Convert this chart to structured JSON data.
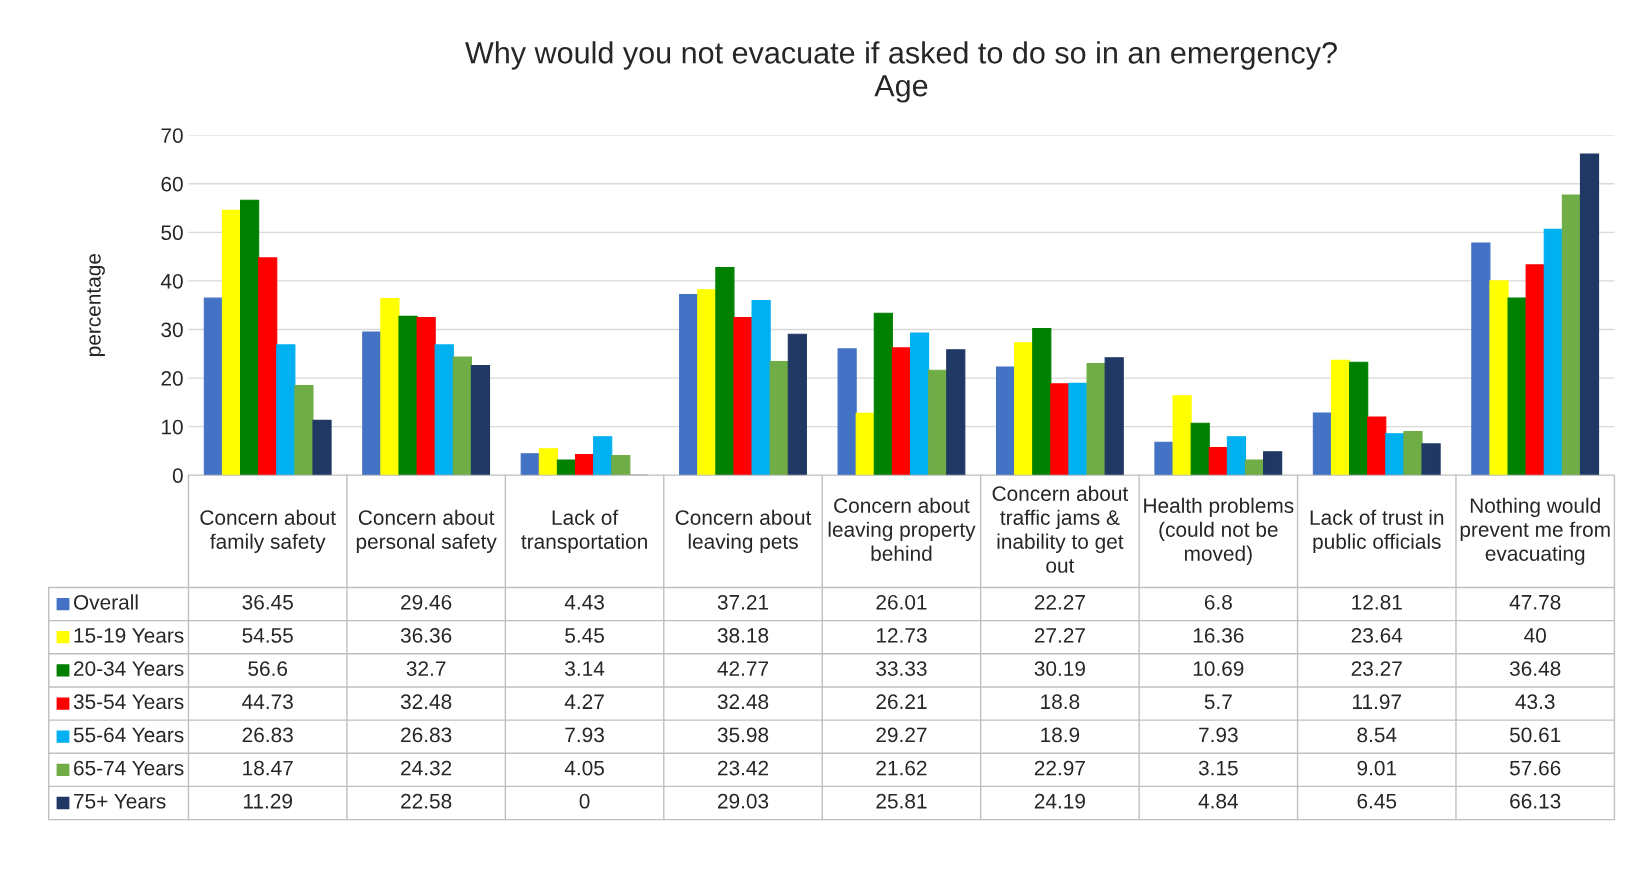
{
  "chart_data": {
    "type": "bar",
    "title": "Why would you not evacuate if asked to do so in an emergency?",
    "subtitle": "Age",
    "ylabel": "percentage",
    "categories": [
      "Concern about family safety",
      "Concern about personal safety",
      "Lack of transportation",
      "Concern about leaving pets",
      "Concern about leaving property behind",
      "Concern about traffic jams & inability to get out",
      "Health problems (could not be moved)",
      "Lack of trust in public officials",
      "Nothing would prevent me from evacuating"
    ],
    "series": [
      {
        "name": "Overall",
        "color": "#4472c4",
        "values": [
          36.45,
          29.46,
          4.43,
          37.21,
          26.01,
          22.27,
          6.8,
          12.81,
          47.78
        ]
      },
      {
        "name": "15-19 Years",
        "color": "#ffff00",
        "values": [
          54.55,
          36.36,
          5.45,
          38.18,
          12.73,
          27.27,
          16.36,
          23.64,
          40
        ]
      },
      {
        "name": "20-34 Years",
        "color": "#008000",
        "values": [
          56.6,
          32.7,
          3.14,
          42.77,
          33.33,
          30.19,
          10.69,
          23.27,
          36.48
        ]
      },
      {
        "name": "35-54 Years",
        "color": "#ff0000",
        "values": [
          44.73,
          32.48,
          4.27,
          32.48,
          26.21,
          18.8,
          5.7,
          11.97,
          43.3
        ]
      },
      {
        "name": "55-64 Years",
        "color": "#00b0f0",
        "values": [
          26.83,
          26.83,
          7.93,
          35.98,
          29.27,
          18.9,
          7.93,
          8.54,
          50.61
        ]
      },
      {
        "name": "65-74 Years",
        "color": "#70ad47",
        "values": [
          18.47,
          24.32,
          4.05,
          23.42,
          21.62,
          22.97,
          3.15,
          9.01,
          57.66
        ]
      },
      {
        "name": "75+ Years",
        "color": "#203864",
        "values": [
          11.29,
          22.58,
          0,
          29.03,
          25.81,
          24.19,
          4.84,
          6.45,
          66.13
        ]
      }
    ],
    "ylim": [
      0,
      70
    ],
    "yticks": [
      0,
      10,
      20,
      30,
      40,
      50,
      60,
      70
    ],
    "grid": "y",
    "legend": "bottom",
    "data_labels": true
  }
}
